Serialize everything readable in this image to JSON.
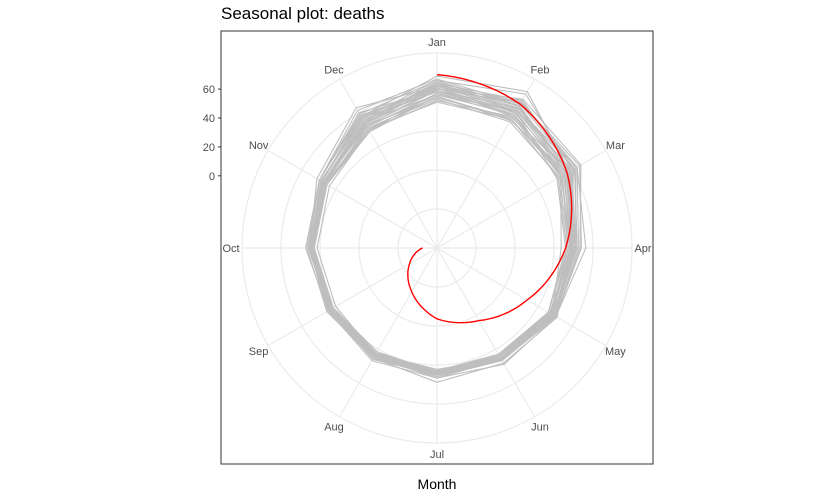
{
  "chart_data": {
    "type": "line",
    "coordinate_system": "polar",
    "title": "Seasonal plot: deaths",
    "xlabel": "Month",
    "ylabel": "",
    "months": [
      "Jan",
      "Feb",
      "Mar",
      "Apr",
      "May",
      "Jun",
      "Jul",
      "Aug",
      "Sep",
      "Oct",
      "Nov",
      "Dec"
    ],
    "radial_ticks": [
      0,
      20,
      40,
      60
    ],
    "ylim": [
      -50,
      85
    ],
    "grid": true,
    "legend": "none",
    "colors": {
      "history": "#bebebe",
      "highlight": "#ff0000",
      "grid": "#ebebeb",
      "border": "#333333"
    },
    "series": [
      {
        "values": [
          66,
          73,
          58,
          42,
          46,
          42,
          43,
          38,
          38,
          40,
          44,
          57
        ]
      },
      {
        "values": [
          62,
          67,
          61,
          46,
          43,
          37,
          37,
          36,
          34,
          39,
          41,
          49
        ]
      },
      {
        "values": [
          59,
          60,
          62,
          53,
          45,
          39,
          40,
          40,
          37,
          41,
          44,
          56
        ]
      },
      {
        "values": [
          56,
          57,
          49,
          36,
          42,
          39,
          34,
          35,
          36,
          37,
          41,
          47
        ]
      },
      {
        "values": [
          69,
          75,
          56,
          43,
          45,
          43,
          40,
          37,
          38,
          38,
          42,
          55
        ]
      },
      {
        "values": [
          57,
          59,
          46,
          39,
          39,
          35,
          35,
          35,
          31,
          33,
          36,
          44
        ]
      },
      {
        "values": [
          54,
          54,
          56,
          47,
          42,
          37,
          37,
          34,
          33,
          37,
          40,
          48
        ]
      },
      {
        "values": [
          62,
          60,
          55,
          44,
          43,
          40,
          36,
          35,
          36,
          38,
          46,
          62
        ]
      },
      {
        "values": [
          60,
          69,
          65,
          49,
          45,
          39,
          37,
          38,
          35,
          36,
          40,
          48
        ]
      },
      {
        "values": [
          51,
          53,
          50,
          41,
          41,
          35,
          35,
          36,
          34,
          36,
          39,
          45
        ]
      },
      {
        "values": [
          65,
          64,
          55,
          46,
          43,
          39,
          38,
          37,
          36,
          38,
          41,
          51
        ]
      },
      {
        "values": [
          61,
          55,
          49,
          43,
          41,
          37,
          36,
          33,
          33,
          37,
          42,
          56
        ]
      },
      {
        "values": [
          59,
          62,
          60,
          47,
          44,
          38,
          38,
          37,
          35,
          38,
          43,
          52
        ]
      },
      {
        "values": [
          55,
          52,
          54,
          45,
          40,
          36,
          37,
          35,
          34,
          35,
          38,
          43
        ]
      },
      {
        "values": [
          64,
          68,
          59,
          43,
          40,
          37,
          36,
          35,
          36,
          37,
          39,
          50
        ]
      },
      {
        "values": [
          58,
          59,
          52,
          42,
          42,
          39,
          37,
          36,
          34,
          38,
          42,
          54
        ]
      },
      {
        "values": [
          63,
          61,
          53,
          45,
          44,
          38,
          39,
          37,
          35,
          37,
          40,
          49
        ]
      },
      {
        "values": [
          53,
          51,
          48,
          41,
          39,
          36,
          36,
          34,
          34,
          36,
          39,
          46
        ]
      },
      {
        "values": [
          60,
          66,
          64,
          50,
          45,
          40,
          38,
          39,
          36,
          39,
          44,
          58
        ]
      },
      {
        "values": [
          57,
          56,
          51,
          44,
          40,
          37,
          35,
          35,
          33,
          36,
          38,
          47
        ]
      },
      {
        "values": [
          66,
          63,
          57,
          45,
          43,
          40,
          37,
          36,
          37,
          38,
          43,
          53
        ]
      },
      {
        "values": [
          61,
          58,
          54,
          43,
          42,
          38,
          36,
          35,
          34,
          37,
          41,
          50
        ]
      },
      {
        "values": [
          56,
          60,
          58,
          46,
          44,
          38,
          38,
          36,
          35,
          36,
          40,
          51
        ]
      },
      {
        "values": [
          62,
          64,
          53,
          44,
          41,
          39,
          37,
          36,
          35,
          37,
          42,
          55
        ]
      },
      {
        "values": [
          52,
          55,
          52,
          43,
          40,
          36,
          36,
          35,
          34,
          36,
          38,
          44
        ]
      },
      {
        "values": [
          67,
          65,
          60,
          47,
          44,
          39,
          38,
          37,
          36,
          39,
          44,
          60
        ]
      },
      {
        "values": [
          59,
          57,
          50,
          42,
          41,
          37,
          35,
          34,
          34,
          36,
          40,
          48
        ]
      },
      {
        "values": [
          63,
          66,
          62,
          48,
          45,
          40,
          39,
          38,
          36,
          38,
          42,
          54
        ]
      },
      {
        "values": [
          55,
          53,
          47,
          40,
          39,
          36,
          35,
          34,
          33,
          35,
          38,
          45
        ]
      },
      {
        "values": [
          64,
          62,
          56,
          45,
          43,
          39,
          37,
          36,
          35,
          37,
          41,
          52
        ]
      }
    ],
    "highlight": {
      "values": [
        70,
        65,
        54,
        39,
        22,
        8,
        -1,
        -15,
        -28,
        -40
      ]
    }
  }
}
